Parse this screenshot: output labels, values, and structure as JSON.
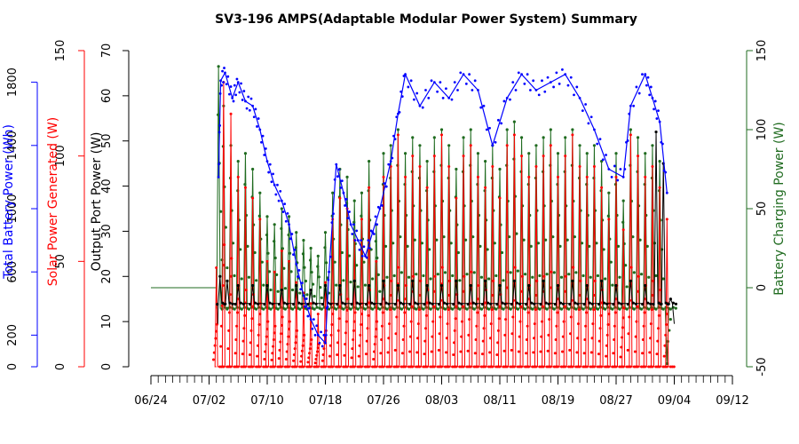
{
  "chart_data": {
    "type": "line",
    "title": "SV3-196 AMPS(Adaptable Modular Power System) Summary",
    "colors": {
      "battery": "#0000ff",
      "solar": "#ff0000",
      "output": "#000000",
      "charging": "#1f6b1f"
    },
    "axes": {
      "battery_power": {
        "label": "Total Battery Power (Wh)",
        "ticks": [
          0,
          200,
          600,
          1000,
          1400,
          1800
        ],
        "range": [
          0,
          2000
        ],
        "color": "#0000ff"
      },
      "solar_power": {
        "label": "Solar Power Generated (W)",
        "ticks": [
          0,
          50,
          100,
          150
        ],
        "range": [
          0,
          150
        ],
        "color": "#ff0000"
      },
      "output_power": {
        "label": "Output Port Power (W)",
        "ticks": [
          0,
          10,
          20,
          30,
          40,
          50,
          60,
          70
        ],
        "range": [
          0,
          70
        ],
        "color": "#000000"
      },
      "charging_power": {
        "label": "Battery Charging Power (W)",
        "ticks": [
          -50,
          0,
          50,
          100,
          150
        ],
        "range": [
          -50,
          150
        ],
        "color": "#1f6b1f"
      }
    },
    "x_axis": {
      "tick_labels": [
        "06/24",
        "07/02",
        "07/10",
        "07/18",
        "07/26",
        "08/03",
        "08/11",
        "08/19",
        "08/27",
        "09/04",
        "09/12"
      ],
      "range_days": [
        0,
        80
      ]
    },
    "series": [
      {
        "name": "Total Battery Power (Wh)",
        "axis": "battery_power",
        "points": [
          [
            9.3,
            1200
          ],
          [
            9.6,
            1810
          ],
          [
            10.2,
            1860
          ],
          [
            11.2,
            1700
          ],
          [
            12.0,
            1800
          ],
          [
            13.0,
            1680
          ],
          [
            14.0,
            1650
          ],
          [
            15.0,
            1500
          ],
          [
            16.0,
            1300
          ],
          [
            17.0,
            1150
          ],
          [
            18.0,
            1050
          ],
          [
            19.0,
            900
          ],
          [
            20.0,
            650
          ],
          [
            21.0,
            450
          ],
          [
            22.0,
            300
          ],
          [
            23.0,
            200
          ],
          [
            24.0,
            150
          ],
          [
            24.5,
            600
          ],
          [
            25.5,
            1280
          ],
          [
            26.5,
            1100
          ],
          [
            27.5,
            900
          ],
          [
            28.5,
            800
          ],
          [
            29.5,
            700
          ],
          [
            30.5,
            850
          ],
          [
            31.5,
            1000
          ],
          [
            33.0,
            1300
          ],
          [
            34.0,
            1600
          ],
          [
            35.0,
            1850
          ],
          [
            37.0,
            1650
          ],
          [
            39.0,
            1800
          ],
          [
            41.0,
            1700
          ],
          [
            43.0,
            1850
          ],
          [
            45.0,
            1750
          ],
          [
            47.0,
            1400
          ],
          [
            49.0,
            1700
          ],
          [
            51.0,
            1850
          ],
          [
            53.0,
            1750
          ],
          [
            55.0,
            1800
          ],
          [
            57.0,
            1850
          ],
          [
            59.0,
            1700
          ],
          [
            61.0,
            1500
          ],
          [
            63.0,
            1250
          ],
          [
            65.0,
            1200
          ],
          [
            66.0,
            1650
          ],
          [
            68.0,
            1850
          ],
          [
            69.0,
            1700
          ],
          [
            70.0,
            1550
          ],
          [
            71.0,
            1100
          ]
        ]
      },
      {
        "name": "Solar Power Generated (W)",
        "axis": "solar_power",
        "peaks": [
          [
            9.0,
            47
          ],
          [
            10.0,
            135
          ],
          [
            11.0,
            120
          ],
          [
            12.0,
            90
          ],
          [
            13.0,
            85
          ],
          [
            14.0,
            80
          ],
          [
            15.0,
            70
          ],
          [
            16.0,
            50
          ],
          [
            17.0,
            45
          ],
          [
            18.0,
            55
          ],
          [
            19.0,
            50
          ],
          [
            20.0,
            40
          ],
          [
            21.0,
            35
          ],
          [
            22.0,
            30
          ],
          [
            23.0,
            25
          ],
          [
            24.0,
            40
          ],
          [
            25.0,
            70
          ],
          [
            26.0,
            80
          ],
          [
            27.0,
            75
          ],
          [
            28.0,
            60
          ],
          [
            29.0,
            70
          ],
          [
            30.0,
            85
          ],
          [
            31.0,
            50
          ],
          [
            32.0,
            90
          ],
          [
            33.0,
            95
          ],
          [
            34.0,
            110
          ],
          [
            35.0,
            90
          ],
          [
            36.0,
            100
          ],
          [
            37.0,
            95
          ],
          [
            38.0,
            85
          ],
          [
            39.0,
            100
          ],
          [
            40.0,
            110
          ],
          [
            41.0,
            95
          ],
          [
            42.0,
            80
          ],
          [
            43.0,
            100
          ],
          [
            44.0,
            105
          ],
          [
            45.0,
            90
          ],
          [
            46.0,
            85
          ],
          [
            47.0,
            95
          ],
          [
            48.0,
            80
          ],
          [
            49.0,
            105
          ],
          [
            50.0,
            110
          ],
          [
            51.0,
            100
          ],
          [
            52.0,
            90
          ],
          [
            53.0,
            95
          ],
          [
            54.0,
            100
          ],
          [
            55.0,
            105
          ],
          [
            56.0,
            90
          ],
          [
            57.0,
            100
          ],
          [
            58.0,
            110
          ],
          [
            59.0,
            95
          ],
          [
            60.0,
            90
          ],
          [
            61.0,
            95
          ],
          [
            62.0,
            85
          ],
          [
            63.0,
            70
          ],
          [
            64.0,
            90
          ],
          [
            65.0,
            65
          ],
          [
            66.0,
            110
          ],
          [
            67.0,
            100
          ],
          [
            68.0,
            90
          ],
          [
            69.0,
            95
          ],
          [
            70.0,
            85
          ],
          [
            71.0,
            70
          ]
        ]
      },
      {
        "name": "Output Port Power (W)",
        "axis": "output_power",
        "baseline": 14,
        "peaks": [
          [
            9.5,
            20
          ],
          [
            10.5,
            19
          ],
          [
            12.0,
            18
          ],
          [
            14.0,
            18
          ],
          [
            16.0,
            18
          ],
          [
            18.0,
            17
          ],
          [
            20.0,
            18
          ],
          [
            22.0,
            17
          ],
          [
            24.0,
            18
          ],
          [
            26.0,
            18
          ],
          [
            28.0,
            19
          ],
          [
            30.0,
            18
          ],
          [
            32.0,
            19
          ],
          [
            34.0,
            18
          ],
          [
            36.0,
            19
          ],
          [
            38.0,
            18
          ],
          [
            40.0,
            18
          ],
          [
            42.0,
            19
          ],
          [
            44.0,
            18
          ],
          [
            46.0,
            19
          ],
          [
            48.0,
            18
          ],
          [
            50.0,
            19
          ],
          [
            52.0,
            18
          ],
          [
            54.0,
            19
          ],
          [
            56.0,
            18
          ],
          [
            58.0,
            19
          ],
          [
            60.0,
            18
          ],
          [
            62.0,
            19
          ],
          [
            64.0,
            18
          ],
          [
            66.0,
            19
          ],
          [
            68.0,
            18
          ],
          [
            69.5,
            52
          ],
          [
            70.5,
            45
          ],
          [
            71.5,
            15
          ]
        ]
      },
      {
        "name": "Battery Charging Power (W)",
        "axis": "charging_power",
        "baseline": -13,
        "peaks": [
          [
            9.3,
            140
          ],
          [
            10.0,
            115
          ],
          [
            11.0,
            90
          ],
          [
            12.0,
            80
          ],
          [
            13.0,
            85
          ],
          [
            14.0,
            75
          ],
          [
            15.0,
            60
          ],
          [
            16.0,
            45
          ],
          [
            17.0,
            40
          ],
          [
            18.0,
            50
          ],
          [
            19.0,
            45
          ],
          [
            20.0,
            35
          ],
          [
            21.0,
            30
          ],
          [
            22.0,
            25
          ],
          [
            23.0,
            20
          ],
          [
            24.0,
            35
          ],
          [
            25.0,
            60
          ],
          [
            26.0,
            75
          ],
          [
            27.0,
            70
          ],
          [
            28.0,
            55
          ],
          [
            29.0,
            60
          ],
          [
            30.0,
            80
          ],
          [
            31.0,
            40
          ],
          [
            32.0,
            85
          ],
          [
            33.0,
            90
          ],
          [
            34.0,
            100
          ],
          [
            35.0,
            85
          ],
          [
            36.0,
            95
          ],
          [
            37.0,
            90
          ],
          [
            38.0,
            80
          ],
          [
            39.0,
            95
          ],
          [
            40.0,
            100
          ],
          [
            41.0,
            90
          ],
          [
            42.0,
            75
          ],
          [
            43.0,
            95
          ],
          [
            44.0,
            100
          ],
          [
            45.0,
            85
          ],
          [
            46.0,
            80
          ],
          [
            47.0,
            90
          ],
          [
            48.0,
            75
          ],
          [
            49.0,
            100
          ],
          [
            50.0,
            105
          ],
          [
            51.0,
            95
          ],
          [
            52.0,
            85
          ],
          [
            53.0,
            90
          ],
          [
            54.0,
            95
          ],
          [
            55.0,
            100
          ],
          [
            56.0,
            85
          ],
          [
            57.0,
            95
          ],
          [
            58.0,
            100
          ],
          [
            59.0,
            90
          ],
          [
            60.0,
            85
          ],
          [
            61.0,
            90
          ],
          [
            62.0,
            80
          ],
          [
            63.0,
            60
          ],
          [
            64.0,
            85
          ],
          [
            65.0,
            55
          ],
          [
            66.0,
            100
          ],
          [
            67.0,
            95
          ],
          [
            68.0,
            85
          ],
          [
            69.0,
            90
          ],
          [
            70.0,
            80
          ],
          [
            71.0,
            -48
          ]
        ]
      }
    ]
  }
}
